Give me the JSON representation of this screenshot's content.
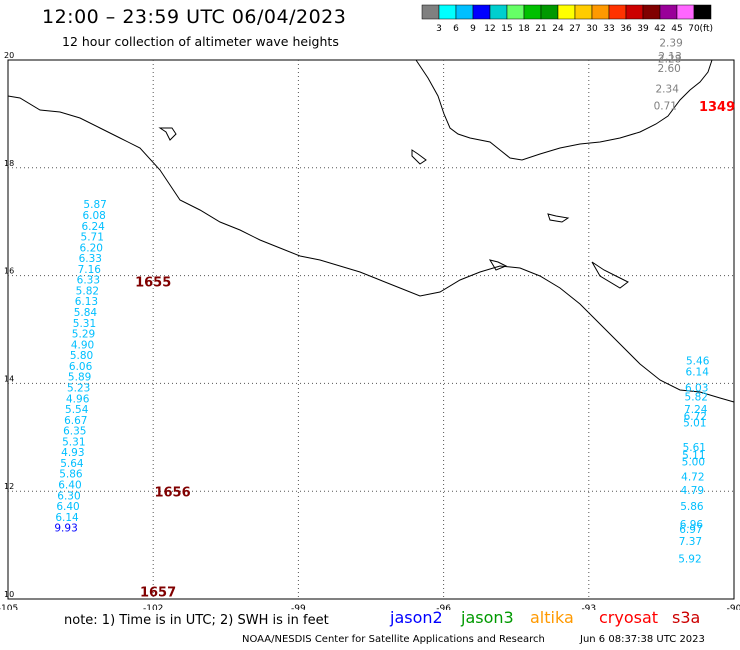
{
  "header": {
    "title": "12:00 – 23:59 UTC 06/04/2023",
    "subtitle": "12 hour collection of altimeter wave heights"
  },
  "colorbar": {
    "colors": [
      "#808080",
      "#00ffff",
      "#00bfff",
      "#0000ff",
      "#00cfcf",
      "#66ff66",
      "#00c000",
      "#009900",
      "#ffff00",
      "#ffcc00",
      "#ff9900",
      "#ff3300",
      "#cc0000",
      "#800000",
      "#990099",
      "#ff66ff",
      "#000000"
    ],
    "labels": [
      "3",
      "6",
      "9",
      "12",
      "15",
      "18",
      "21",
      "24",
      "27",
      "30",
      "33",
      "36",
      "39",
      "42",
      "45",
      "70"
    ],
    "unit": "(ft)"
  },
  "map": {
    "lon_ticks": [
      "-105",
      "-102",
      "-99",
      "-96",
      "-93",
      "-90"
    ],
    "lat_ticks": [
      "20",
      "18",
      "16",
      "14",
      "12",
      "10"
    ]
  },
  "tracks": [
    {
      "track_id": "1655",
      "label_color": "#800000",
      "points": [
        {
          "lon": -103.2,
          "lat": 17.25,
          "value": "5.87",
          "color": "#00bfff"
        },
        {
          "lon": -103.22,
          "lat": 17.05,
          "value": "6.08",
          "color": "#00bfff"
        },
        {
          "lon": -103.24,
          "lat": 16.85,
          "value": "6.24",
          "color": "#00bfff"
        },
        {
          "lon": -103.26,
          "lat": 16.65,
          "value": "5.71",
          "color": "#00bfff"
        },
        {
          "lon": -103.28,
          "lat": 16.45,
          "value": "6.20",
          "color": "#00bfff"
        },
        {
          "lon": -103.3,
          "lat": 16.25,
          "value": "6.33",
          "color": "#00bfff"
        },
        {
          "lon": -103.32,
          "lat": 16.05,
          "value": "7.16",
          "color": "#00bfff"
        },
        {
          "lon": -103.34,
          "lat": 15.85,
          "value": "6.33",
          "color": "#00bfff"
        },
        {
          "lon": -103.36,
          "lat": 15.65,
          "value": "5.82",
          "color": "#00bfff"
        },
        {
          "lon": -103.38,
          "lat": 15.45,
          "value": "6.13",
          "color": "#00bfff"
        },
        {
          "lon": -103.4,
          "lat": 15.25,
          "value": "5.84",
          "color": "#00bfff"
        },
        {
          "lon": -103.42,
          "lat": 15.05,
          "value": "5.31",
          "color": "#00bfff"
        },
        {
          "lon": -103.44,
          "lat": 14.85,
          "value": "5.29",
          "color": "#00bfff"
        },
        {
          "lon": -103.46,
          "lat": 14.65,
          "value": "4.90",
          "color": "#00bfff"
        },
        {
          "lon": -103.48,
          "lat": 14.45,
          "value": "5.80",
          "color": "#00bfff"
        },
        {
          "lon": -103.5,
          "lat": 14.25,
          "value": "6.06",
          "color": "#00bfff"
        },
        {
          "lon": -103.52,
          "lat": 14.05,
          "value": "5.89",
          "color": "#00bfff"
        },
        {
          "lon": -103.54,
          "lat": 13.85,
          "value": "5.23",
          "color": "#00bfff"
        },
        {
          "lon": -103.56,
          "lat": 13.65,
          "value": "4.96",
          "color": "#00bfff"
        },
        {
          "lon": -103.58,
          "lat": 13.45,
          "value": "5.54",
          "color": "#00bfff"
        },
        {
          "lon": -103.6,
          "lat": 13.25,
          "value": "6.67",
          "color": "#00bfff"
        },
        {
          "lon": -103.62,
          "lat": 13.05,
          "value": "6.35",
          "color": "#00bfff"
        },
        {
          "lon": -103.64,
          "lat": 12.85,
          "value": "5.31",
          "color": "#00bfff"
        },
        {
          "lon": -103.66,
          "lat": 12.65,
          "value": "4.93",
          "color": "#00bfff"
        },
        {
          "lon": -103.68,
          "lat": 12.45,
          "value": "5.64",
          "color": "#00bfff"
        },
        {
          "lon": -103.7,
          "lat": 12.25,
          "value": "5.86",
          "color": "#00bfff"
        },
        {
          "lon": -103.72,
          "lat": 12.05,
          "value": "6.40",
          "color": "#00bfff"
        },
        {
          "lon": -103.74,
          "lat": 11.85,
          "value": "6.30",
          "color": "#00bfff"
        },
        {
          "lon": -103.76,
          "lat": 11.65,
          "value": "6.40",
          "color": "#00bfff"
        },
        {
          "lon": -103.78,
          "lat": 11.45,
          "value": "6.14",
          "color": "#00bfff"
        },
        {
          "lon": -103.8,
          "lat": 11.25,
          "value": "9.93",
          "color": "#0000ff"
        }
      ]
    },
    {
      "track_id": "1349",
      "label_color": "#ff0000",
      "points": [
        {
          "lon": -91.3,
          "lat": 20.25,
          "value": "2.39",
          "color": "#808080"
        },
        {
          "lon": -91.32,
          "lat": 20.0,
          "value": "2.13",
          "color": "#808080"
        },
        {
          "lon": -91.33,
          "lat": 19.95,
          "value": "2.28",
          "color": "#808080"
        },
        {
          "lon": -91.34,
          "lat": 19.78,
          "value": "2.60",
          "color": "#808080"
        },
        {
          "lon": -91.38,
          "lat": 19.4,
          "value": "2.34",
          "color": "#808080"
        },
        {
          "lon": -91.42,
          "lat": 19.08,
          "value": "0.71",
          "color": "#808080"
        }
      ]
    },
    {
      "track_id": "right",
      "label_color": "#000000",
      "points": [
        {
          "lon": -90.75,
          "lat": 14.35,
          "value": "5.46",
          "color": "#00bfff"
        },
        {
          "lon": -90.76,
          "lat": 14.15,
          "value": "6.14",
          "color": "#00bfff"
        },
        {
          "lon": -90.77,
          "lat": 13.85,
          "value": "6.03",
          "color": "#00bfff"
        },
        {
          "lon": -90.78,
          "lat": 13.68,
          "value": "5.82",
          "color": "#00bfff"
        },
        {
          "lon": -90.79,
          "lat": 13.45,
          "value": "7.24",
          "color": "#00bfff"
        },
        {
          "lon": -90.8,
          "lat": 13.32,
          "value": "6.72",
          "color": "#00bfff"
        },
        {
          "lon": -90.81,
          "lat": 13.2,
          "value": "5.01",
          "color": "#00bfff"
        },
        {
          "lon": -90.82,
          "lat": 12.75,
          "value": "5.61",
          "color": "#00bfff"
        },
        {
          "lon": -90.83,
          "lat": 12.6,
          "value": "5.11",
          "color": "#00bfff"
        },
        {
          "lon": -90.84,
          "lat": 12.48,
          "value": "5.00",
          "color": "#00bfff"
        },
        {
          "lon": -90.85,
          "lat": 12.2,
          "value": "4.72",
          "color": "#00bfff"
        },
        {
          "lon": -90.86,
          "lat": 11.95,
          "value": "4.79",
          "color": "#00bfff"
        },
        {
          "lon": -90.87,
          "lat": 11.65,
          "value": "5.86",
          "color": "#00bfff"
        },
        {
          "lon": -90.88,
          "lat": 11.32,
          "value": "6.96",
          "color": "#00bfff"
        },
        {
          "lon": -90.89,
          "lat": 11.22,
          "value": "6.97",
          "color": "#00bfff"
        },
        {
          "lon": -90.9,
          "lat": 11.0,
          "value": "7.37",
          "color": "#00bfff"
        },
        {
          "lon": -90.91,
          "lat": 10.68,
          "value": "5.92",
          "color": "#00bfff"
        }
      ]
    }
  ],
  "track_labels": [
    {
      "text": "1655",
      "color": "#800000",
      "lon": -102.0,
      "lat": 15.8
    },
    {
      "text": "1656",
      "color": "#800000",
      "lon": -101.6,
      "lat": 11.9
    },
    {
      "text": "1657",
      "color": "#800000",
      "lon": -101.9,
      "lat": 10.05
    },
    {
      "text": "1349",
      "color": "#ff0000",
      "lon": -90.35,
      "lat": 19.05
    }
  ],
  "legend": {
    "note": "note: 1) Time is in UTC; 2) SWH is in feet",
    "satellites": [
      {
        "name": "jason2",
        "color": "#0000ff"
      },
      {
        "name": "jason3",
        "color": "#009900"
      },
      {
        "name": "altika",
        "color": "#ff9900"
      },
      {
        "name": "cryosat",
        "color": "#ff0000"
      },
      {
        "name": "s3a",
        "color": "#cc0000"
      }
    ]
  },
  "footer": {
    "credit": "NOAA/NESDIS Center for Satellite Applications and Research",
    "timestamp": "Jun  6 08:37:38 UTC 2023"
  }
}
